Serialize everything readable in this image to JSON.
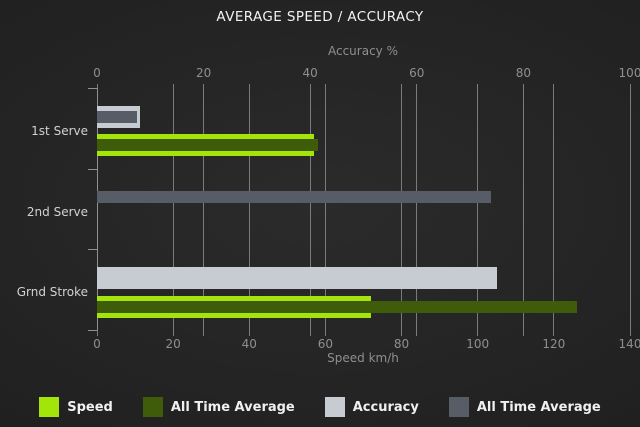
{
  "chart_data": {
    "type": "bar",
    "orientation": "horizontal",
    "title": "AVERAGE SPEED / ACCURACY",
    "categories": [
      "1st Serve",
      "2nd Serve",
      "Grnd Stroke"
    ],
    "axes": {
      "top": {
        "title": "Accuracy %",
        "min": 0,
        "max": 100,
        "ticks": [
          0,
          20,
          40,
          60,
          80,
          100
        ]
      },
      "bottom": {
        "title": "Speed km/h",
        "min": 0,
        "max": 140,
        "ticks": [
          0,
          20,
          40,
          60,
          80,
          100,
          120,
          140
        ]
      }
    },
    "series": [
      {
        "name": "Speed",
        "axis": "bottom",
        "style": "thick",
        "color": "#a3e40b",
        "values": [
          57,
          null,
          72
        ]
      },
      {
        "name": "All Time Average",
        "axis": "bottom",
        "style": "thin",
        "color": "#3f5c0b",
        "values": [
          58,
          null,
          126
        ]
      },
      {
        "name": "Accuracy",
        "axis": "top",
        "style": "thick",
        "color": "#c6ccd2",
        "values": [
          8,
          null,
          75
        ]
      },
      {
        "name": "All Time Average",
        "axis": "top",
        "style": "thin",
        "color": "#565d66",
        "values": [
          7.5,
          74,
          null
        ]
      }
    ],
    "grid": true,
    "legend_position": "bottom",
    "colors": {
      "background": "#222222",
      "title_text": "#f2f2f2",
      "axis_text": "#8f8f8f",
      "category_text": "#d2d2d2",
      "gridline": "#7b7b7b",
      "legend_text": "#f0f0f0"
    }
  }
}
